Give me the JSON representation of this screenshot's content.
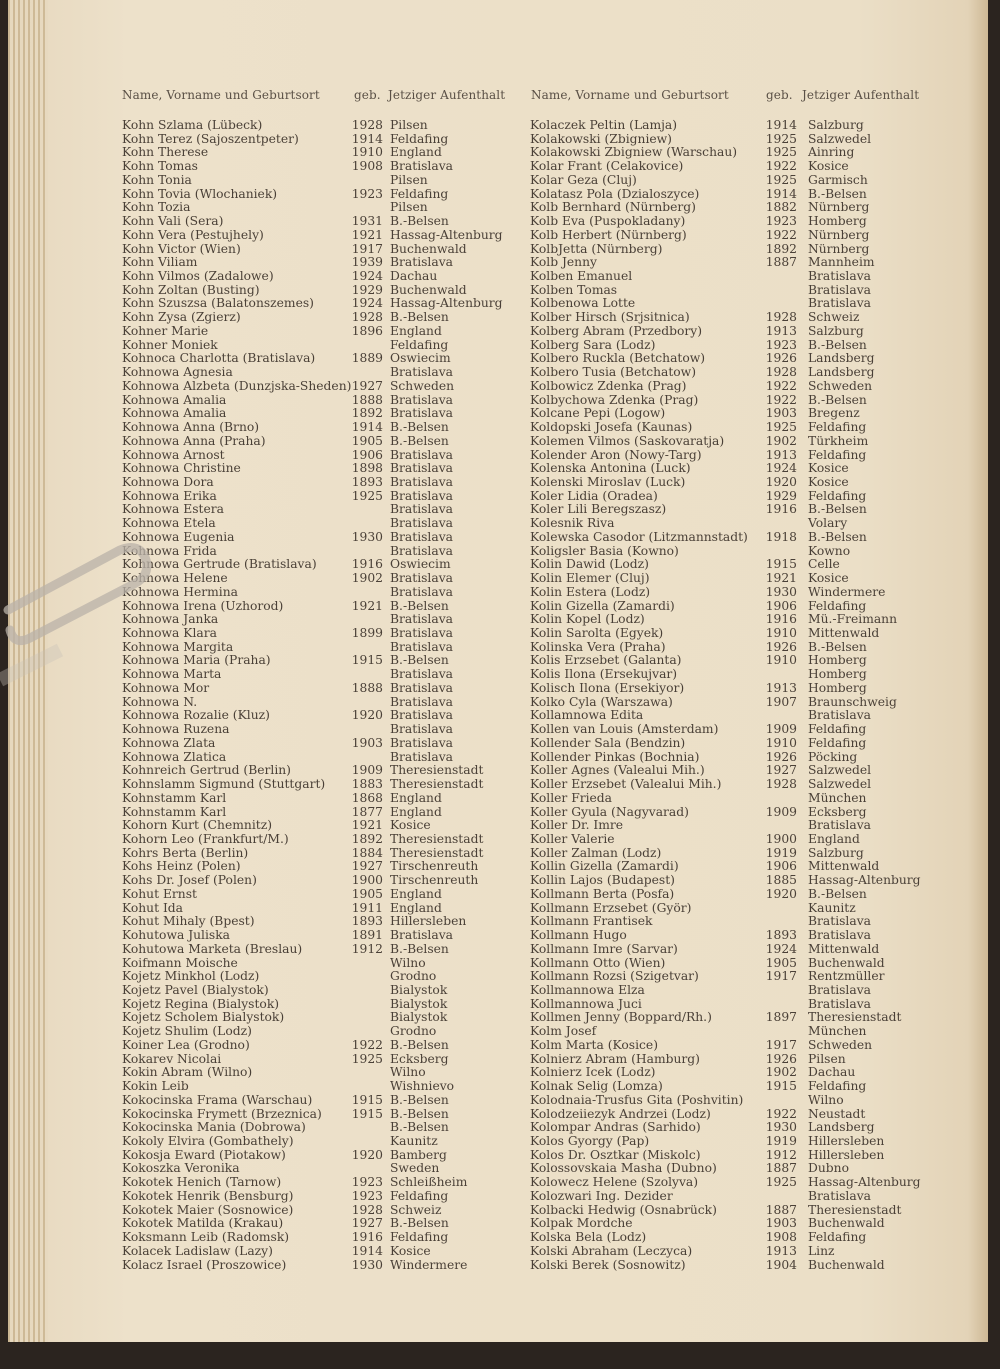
{
  "header": {
    "left": {
      "name": "Name, Vorname und Geburtsort",
      "born": "geb.",
      "place": "Jetziger Aufenthalt"
    },
    "right": {
      "name": "Name, Vorname und Geburtsort",
      "born": "geb.",
      "place": "Jetziger Aufenthalt"
    }
  },
  "columns": {
    "left": [
      [
        "Kohn Szlama (Lübeck)",
        "1928",
        "Pilsen"
      ],
      [
        "Kohn Terez (Sajoszentpeter)",
        "1914",
        "Feldafing"
      ],
      [
        "Kohn Therese",
        "1910",
        "England"
      ],
      [
        "Kohn Tomas",
        "1908",
        "Bratislava"
      ],
      [
        "Kohn Tonia",
        "",
        "Pilsen"
      ],
      [
        "Kohn Tovia (Wlochaniek)",
        "1923",
        "Feldafing"
      ],
      [
        "Kohn Tozia",
        "",
        "Pilsen"
      ],
      [
        "Kohn Vali (Sera)",
        "1931",
        "B.-Belsen"
      ],
      [
        "Kohn Vera (Pestujhely)",
        "1921",
        "Hassag-Altenburg"
      ],
      [
        "Kohn Victor (Wien)",
        "1917",
        "Buchenwald"
      ],
      [
        "Kohn Viliam",
        "1939",
        "Bratislava"
      ],
      [
        "Kohn Vilmos (Zadalowe)",
        "1924",
        "Dachau"
      ],
      [
        "Kohn Zoltan (Busting)",
        "1929",
        "Buchenwald"
      ],
      [
        "Kohn Szuszsa (Balatonszemes)",
        "1924",
        "Hassag-Altenburg"
      ],
      [
        "Kohn Zysa (Zgierz)",
        "1928",
        "B.-Belsen"
      ],
      [
        "Kohner Marie",
        "1896",
        "England"
      ],
      [
        "Kohner Moniek",
        "",
        "Feldafing"
      ],
      [
        "Kohnoca Charlotta (Bratislava)",
        "1889",
        "Oswiecim"
      ],
      [
        "Kohnowa Agnesia",
        "",
        "Bratislava"
      ],
      [
        "Kohnowa Alzbeta (Dunzjska-Sheden)",
        "1927",
        "Schweden"
      ],
      [
        "Kohnowa Amalia",
        "1888",
        "Bratislava"
      ],
      [
        "Kohnowa Amalia",
        "1892",
        "Bratislava"
      ],
      [
        "Kohnowa Anna (Brno)",
        "1914",
        "B.-Belsen"
      ],
      [
        "Kohnowa Anna (Praha)",
        "1905",
        "B.-Belsen"
      ],
      [
        "Kohnowa Arnost",
        "1906",
        "Bratislava"
      ],
      [
        "Kohnowa Christine",
        "1898",
        "Bratislava"
      ],
      [
        "Kohnowa Dora",
        "1893",
        "Bratislava"
      ],
      [
        "Kohnowa Erika",
        "1925",
        "Bratislava"
      ],
      [
        "Kohnowa Estera",
        "",
        "Bratislava"
      ],
      [
        "Kohnowa Etela",
        "",
        "Bratislava"
      ],
      [
        "Kohnowa Eugenia",
        "1930",
        "Bratislava"
      ],
      [
        "Kohnowa Frida",
        "",
        "Bratislava"
      ],
      [
        "Kohnowa Gertrude (Bratislava)",
        "1916",
        "Oswiecim"
      ],
      [
        "Kohnowa Helene",
        "1902",
        "Bratislava"
      ],
      [
        "Kohnowa Hermina",
        "",
        "Bratislava"
      ],
      [
        "Kohnowa Irena (Uzhorod)",
        "1921",
        "B.-Belsen"
      ],
      [
        "Kohnowa Janka",
        "",
        "Bratislava"
      ],
      [
        "Kohnowa Klara",
        "1899",
        "Bratislava"
      ],
      [
        "Kohnowa Margita",
        "",
        "Bratislava"
      ],
      [
        "Kohnowa Maria (Praha)",
        "1915",
        "B.-Belsen"
      ],
      [
        "Kohnowa Marta",
        "",
        "Bratislava"
      ],
      [
        "Kohnowa Mor",
        "1888",
        "Bratislava"
      ],
      [
        "Kohnowa N.",
        "",
        "Bratislava"
      ],
      [
        "Kohnowa Rozalie (Kluz)",
        "1920",
        "Bratislava"
      ],
      [
        "Kohnowa Ruzena",
        "",
        "Bratislava"
      ],
      [
        "Kohnowa Zlata",
        "1903",
        "Bratislava"
      ],
      [
        "Kohnowa Zlatica",
        "",
        "Bratislava"
      ],
      [
        "Kohnreich Gertrud (Berlin)",
        "1909",
        "Theresienstadt"
      ],
      [
        "Kohnslamm Sigmund (Stuttgart)",
        "1883",
        "Theresienstadt"
      ],
      [
        "Kohnstamm Karl",
        "1868",
        "England"
      ],
      [
        "Kohnstamm Karl",
        "1877",
        "England"
      ],
      [
        "Kohorn Kurt (Chemnitz)",
        "1921",
        "Kosice"
      ],
      [
        "Kohorn Leo (Frankfurt/M.)",
        "1892",
        "Theresienstadt"
      ],
      [
        "Kohrs Berta (Berlin)",
        "1884",
        "Theresienstadt"
      ],
      [
        "Kohs Heinz (Polen)",
        "1927",
        "Tirschenreuth"
      ],
      [
        "Kohs Dr. Josef (Polen)",
        "1900",
        "Tirschenreuth"
      ],
      [
        "Kohut Ernst",
        "1905",
        "England"
      ],
      [
        "Kohut Ida",
        "1911",
        "England"
      ],
      [
        "Kohut Mihaly (Bpest)",
        "1893",
        "Hillersleben"
      ],
      [
        "Kohutowa Juliska",
        "1891",
        "Bratislava"
      ],
      [
        "Kohutowa Marketa (Breslau)",
        "1912",
        "B.-Belsen"
      ],
      [
        "Koifmann Moische",
        "",
        "Wilno"
      ],
      [
        "Kojetz Minkhol (Lodz)",
        "",
        "Grodno"
      ],
      [
        "Kojetz Pavel (Bialystok)",
        "",
        "Bialystok"
      ],
      [
        "Kojetz Regina (Bialystok)",
        "",
        "Bialystok"
      ],
      [
        "Kojetz Scholem Bialystok)",
        "",
        "Bialystok"
      ],
      [
        "Kojetz Shulim (Lodz)",
        "",
        "Grodno"
      ],
      [
        "Koiner Lea (Grodno)",
        "1922",
        "B.-Belsen"
      ],
      [
        "Kokarev Nicolai",
        "1925",
        "Ecksberg"
      ],
      [
        "Kokin Abram (Wilno)",
        "",
        "Wilno"
      ],
      [
        "Kokin Leib",
        "",
        "Wishnievo"
      ],
      [
        "Kokocinska Frama (Warschau)",
        "1915",
        "B.-Belsen"
      ],
      [
        "Kokocinska Frymett (Brzeznica)",
        "1915",
        "B.-Belsen"
      ],
      [
        "Kokocinska Mania (Dobrowa)",
        "",
        "B.-Belsen"
      ],
      [
        "Kokoly Elvira (Gombathely)",
        "",
        "Kaunitz"
      ],
      [
        "Kokosja Eward (Piotakow)",
        "1920",
        "Bamberg"
      ],
      [
        "Kokoszka Veronika",
        "",
        "Sweden"
      ],
      [
        "Kokotek Henich (Tarnow)",
        "1923",
        "Schleißheim"
      ],
      [
        "Kokotek Henrik (Bensburg)",
        "1923",
        "Feldafing"
      ],
      [
        "Kokotek Maier (Sosnowice)",
        "1928",
        "Schweiz"
      ],
      [
        "Kokotek Matilda (Krakau)",
        "1927",
        "B.-Belsen"
      ],
      [
        "Koksmann Leib (Radomsk)",
        "1916",
        "Feldafing"
      ],
      [
        "Kolacek Ladislaw (Lazy)",
        "1914",
        "Kosice"
      ],
      [
        "Kolacz Israel (Proszowice)",
        "1930",
        "Windermere"
      ]
    ],
    "right": [
      [
        "Kolaczek Peltin (Lamja)",
        "1914",
        "Salzburg"
      ],
      [
        "Kolakowski (Zbigniew)",
        "1925",
        "Salzwedel"
      ],
      [
        "Kolakowski Zbigniew (Warschau)",
        "1925",
        "Ainring"
      ],
      [
        "Kolar Frant (Celakovice)",
        "1922",
        "Kosice"
      ],
      [
        "Kolar Geza (Cluj)",
        "1925",
        "Garmisch"
      ],
      [
        "Kolatasz Pola (Dzialoszyce)",
        "1914",
        "B.-Belsen"
      ],
      [
        "Kolb Bernhard (Nürnberg)",
        "1882",
        "Nürnberg"
      ],
      [
        "Kolb Eva (Puspokladany)",
        "1923",
        "Homberg"
      ],
      [
        "Kolb Herbert (Nürnberg)",
        "1922",
        "Nürnberg"
      ],
      [
        "KolbJetta (Nürnberg)",
        "1892",
        "Nürnberg"
      ],
      [
        "Kolb Jenny",
        "1887",
        "Mannheim"
      ],
      [
        "Kolben Emanuel",
        "",
        "Bratislava"
      ],
      [
        "Kolben Tomas",
        "",
        "Bratislava"
      ],
      [
        "Kolbenowa Lotte",
        "",
        "Bratislava"
      ],
      [
        "Kolber Hirsch (Srjsitnica)",
        "1928",
        "Schweiz"
      ],
      [
        "Kolberg Abram (Przedbory)",
        "1913",
        "Salzburg"
      ],
      [
        "Kolberg Sara (Lodz)",
        "1923",
        "B.-Belsen"
      ],
      [
        "Kolbero Ruckla (Betchatow)",
        "1926",
        "Landsberg"
      ],
      [
        "Kolbero Tusia (Betchatow)",
        "1928",
        "Landsberg"
      ],
      [
        "Kolbowicz Zdenka (Prag)",
        "1922",
        "Schweden"
      ],
      [
        "Kolbychowa Zdenka (Prag)",
        "1922",
        "B.-Belsen"
      ],
      [
        "Kolcane Pepi (Logow)",
        "1903",
        "Bregenz"
      ],
      [
        "Koldopski Josefa (Kaunas)",
        "1925",
        "Feldafing"
      ],
      [
        "Kolemen Vilmos (Saskovaratja)",
        "1902",
        "Türkheim"
      ],
      [
        "Kolender Aron (Nowy-Targ)",
        "1913",
        "Feldafing"
      ],
      [
        "Kolenska Antonina (Luck)",
        "1924",
        "Kosice"
      ],
      [
        "Kolenski Miroslav (Luck)",
        "1920",
        "Kosice"
      ],
      [
        "Koler Lidia (Oradea)",
        "1929",
        "Feldafing"
      ],
      [
        "Koler Lili Beregszasz)",
        "1916",
        "B.-Belsen"
      ],
      [
        "Kolesnik Riva",
        "",
        "Volary"
      ],
      [
        "Kolewska Casodor (Litzmannstadt)",
        "1918",
        "B.-Belsen"
      ],
      [
        "Koligsler Basia (Kowno)",
        "",
        "Kowno"
      ],
      [
        "Kolin Dawid (Lodz)",
        "1915",
        "Celle"
      ],
      [
        "Kolin Elemer (Cluj)",
        "1921",
        "Kosice"
      ],
      [
        "Kolin Estera (Lodz)",
        "1930",
        "Windermere"
      ],
      [
        "Kolin Gizella (Zamardi)",
        "1906",
        "Feldafing"
      ],
      [
        "Kolin Kopel (Lodz)",
        "1916",
        "Mü.-Freimann"
      ],
      [
        "Kolin Sarolta (Egyek)",
        "1910",
        "Mittenwald"
      ],
      [
        "Kolinska Vera (Praha)",
        "1926",
        "B.-Belsen"
      ],
      [
        "Kolis Erzsebet (Galanta)",
        "1910",
        "Homberg"
      ],
      [
        "Kolis Ilona (Ersekujvar)",
        "",
        "Homberg"
      ],
      [
        "Kolisch Ilona (Ersekiyor)",
        "1913",
        "Homberg"
      ],
      [
        "Kolko Cyla (Warszawa)",
        "1907",
        "Braunschweig"
      ],
      [
        "Kollamnowa Edita",
        "",
        "Bratislava"
      ],
      [
        "Kollen van Louis (Amsterdam)",
        "1909",
        "Feldafing"
      ],
      [
        "Kollender Sala (Bendzin)",
        "1910",
        "Feldafing"
      ],
      [
        "Kollender Pinkas (Bochnia)",
        "1926",
        "Pöcking"
      ],
      [
        "Koller Agnes (Valealui Mih.)",
        "1927",
        "Salzwedel"
      ],
      [
        "Koller Erzsebet (Valealui Mih.)",
        "1928",
        "Salzwedel"
      ],
      [
        "Koller Frieda",
        "",
        "München"
      ],
      [
        "Koller Gyula (Nagyvarad)",
        "1909",
        "Ecksberg"
      ],
      [
        "Koller Dr. Imre",
        "",
        "Bratislava"
      ],
      [
        "Koller Valerie",
        "1900",
        "England"
      ],
      [
        "Koller Zalman (Lodz)",
        "1919",
        "Salzburg"
      ],
      [
        "Kollin Gizella (Zamardi)",
        "1906",
        "Mittenwald"
      ],
      [
        "Kollin Lajos (Budapest)",
        "1885",
        "Hassag-Altenburg"
      ],
      [
        "Kollmann Berta (Posfa)",
        "1920",
        "B.-Belsen"
      ],
      [
        "Kollmann Erzsebet (Györ)",
        "",
        "Kaunitz"
      ],
      [
        "Kollmann Frantisek",
        "",
        "Bratislava"
      ],
      [
        "Kollmann Hugo",
        "1893",
        "Bratislava"
      ],
      [
        "Kollmann Imre (Sarvar)",
        "1924",
        "Mittenwald"
      ],
      [
        "Kollmann Otto (Wien)",
        "1905",
        "Buchenwald"
      ],
      [
        "Kollmann Rozsi (Szigetvar)",
        "1917",
        "Rentzmüller"
      ],
      [
        "Kollmannowa Elza",
        "",
        "Bratislava"
      ],
      [
        "Kollmannowa Juci",
        "",
        "Bratislava"
      ],
      [
        "Kollmen Jenny (Boppard/Rh.)",
        "1897",
        "Theresienstadt"
      ],
      [
        "Kolm Josef",
        "",
        "München"
      ],
      [
        "Kolm Marta (Kosice)",
        "1917",
        "Schweden"
      ],
      [
        "Kolnierz Abram (Hamburg)",
        "1926",
        "Pilsen"
      ],
      [
        "Kolnierz Icek (Lodz)",
        "1902",
        "Dachau"
      ],
      [
        "Kolnak Selig (Lomza)",
        "1915",
        "Feldafing"
      ],
      [
        "Kolodnaia-Trusfus Gita (Poshvitin)",
        "",
        "Wilno"
      ],
      [
        "Kolodzeiiezyk Andrzei (Lodz)",
        "1922",
        "Neustadt"
      ],
      [
        "Kolompar Andras (Sarhido)",
        "1930",
        "Landsberg"
      ],
      [
        "Kolos Gyorgy (Pap)",
        "1919",
        "Hillersleben"
      ],
      [
        "Kolos Dr. Osztkar (Miskolc)",
        "1912",
        "Hillersleben"
      ],
      [
        "Kolossovskaia Masha (Dubno)",
        "1887",
        "Dubno"
      ],
      [
        "Kolowecz Helene (Szolyva)",
        "1925",
        "Hassag-Altenburg"
      ],
      [
        "Kolozwari Ing. Dezider",
        "",
        "Bratislava"
      ],
      [
        "Kolbacki Hedwig (Osnabrück)",
        "1887",
        "Theresienstadt"
      ],
      [
        "Kolpak Mordche",
        "1903",
        "Buchenwald"
      ],
      [
        "Kolska Bela (Lodz)",
        "1908",
        "Feldafing"
      ],
      [
        "Kolski Abraham (Leczyca)",
        "1913",
        "Linz"
      ],
      [
        "Kolski Berek (Sosnowitz)",
        "1904",
        "Buchenwald"
      ]
    ]
  }
}
